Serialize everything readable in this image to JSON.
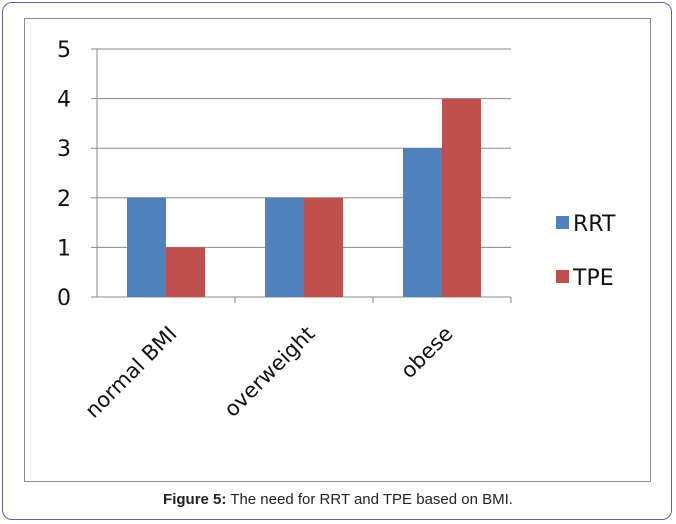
{
  "caption": {
    "label": "Figure 5:",
    "text": " The need for RRT and TPE based on BMI."
  },
  "chart_data": {
    "type": "bar",
    "categories": [
      "normal BMI",
      "overweight",
      "obese"
    ],
    "series": [
      {
        "name": "RRT",
        "values": [
          2,
          2,
          3
        ],
        "color": "#4f81bd"
      },
      {
        "name": "TPE",
        "values": [
          1,
          2,
          4
        ],
        "color": "#c0504d"
      }
    ],
    "title": "",
    "xlabel": "",
    "ylabel": "",
    "ylim": [
      0,
      5
    ],
    "yticks": [
      0,
      1,
      2,
      3,
      4,
      5
    ],
    "grid": true,
    "legend": "right"
  }
}
